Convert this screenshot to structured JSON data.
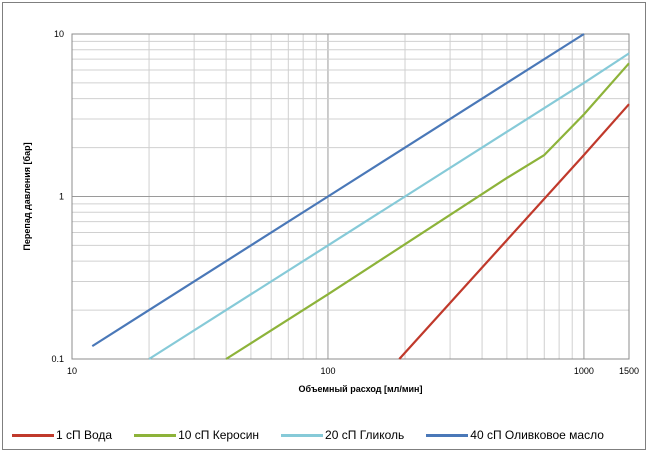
{
  "chart_data": {
    "type": "line",
    "title": "",
    "xlabel": "Объемный расход [мл/мин]",
    "ylabel": "Перепад давления [бар]",
    "xscale": "log",
    "yscale": "log",
    "xlim": [
      10,
      1500
    ],
    "ylim": [
      0.1,
      10
    ],
    "xticks": [
      {
        "value": 10,
        "label": "10"
      },
      {
        "value": 100,
        "label": "100"
      },
      {
        "value": 1000,
        "label": "1000"
      },
      {
        "value": 1500,
        "label": "1500"
      }
    ],
    "yticks": [
      {
        "value": 0.1,
        "label": "0.1"
      },
      {
        "value": 1,
        "label": "1"
      },
      {
        "value": 10,
        "label": "10"
      }
    ],
    "grid": true,
    "legend_position": "bottom",
    "series": [
      {
        "name": "1 сП Вода",
        "color": "#c0392b",
        "x": [
          190,
          1000,
          1500
        ],
        "y": [
          0.1,
          1.8,
          3.7
        ]
      },
      {
        "name": "10 сП Керосин",
        "color": "#8db33a",
        "x": [
          40,
          100,
          500,
          700,
          1000,
          1500
        ],
        "y": [
          0.1,
          0.25,
          1.3,
          1.8,
          3.2,
          6.6
        ]
      },
      {
        "name": "20 сП Гликоль",
        "color": "#86cad8",
        "x": [
          20,
          100,
          1000,
          1500
        ],
        "y": [
          0.1,
          0.5,
          5.0,
          7.6
        ]
      },
      {
        "name": "40 сП Оливковое масло",
        "color": "#4a78b8",
        "x": [
          12,
          100,
          1000
        ],
        "y": [
          0.12,
          1.0,
          10.0
        ]
      }
    ]
  }
}
